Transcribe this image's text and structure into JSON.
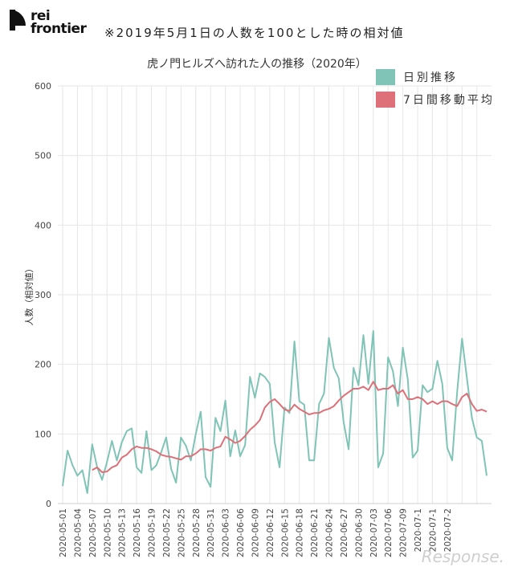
{
  "header": {
    "logo_text": "rei\nfrontier",
    "subtitle": "※2019年5月1日の人数を100とした時の相対値"
  },
  "watermark": "Response.",
  "colors": {
    "daily": "#7fc4b6",
    "ma7": "#dd7078",
    "grid": "#e6e6e6"
  },
  "chart_data": {
    "type": "line",
    "title": "虎ノ門ヒルズへ訪れた人の推移（2020年）",
    "ylabel": "人数（相対値）",
    "xlabel": "",
    "ylim": [
      0,
      600
    ],
    "yticks": [
      0,
      100,
      200,
      300,
      400,
      500,
      600
    ],
    "grid": true,
    "legend_position": "top-right",
    "x_start": "2020-05-01",
    "x_tick_labels": [
      "2020-05-01",
      "2020-05-04",
      "2020-05-07",
      "2020-05-10",
      "2020-05-13",
      "2020-05-16",
      "2020-05-19",
      "2020-05-22",
      "2020-05-25",
      "2020-05-28",
      "2020-05-31",
      "2020-06-03",
      "2020-06-06",
      "2020-06-09",
      "2020-06-12",
      "2020-06-15",
      "2020-06-18",
      "2020-06-21",
      "2020-06-24",
      "2020-06-27",
      "2020-06-30",
      "2020-07-03",
      "2020-07-06",
      "2020-07-09",
      "2020-07-1",
      "2020-07-1",
      "2020-07-2"
    ],
    "series": [
      {
        "name": "日別推移",
        "color": "#7fc4b6",
        "values": [
          25,
          76,
          55,
          40,
          48,
          15,
          85,
          52,
          34,
          60,
          90,
          62,
          88,
          104,
          108,
          52,
          44,
          104,
          48,
          55,
          74,
          95,
          50,
          30,
          95,
          83,
          62,
          100,
          132,
          38,
          24,
          123,
          104,
          148,
          68,
          105,
          68,
          84,
          182,
          152,
          187,
          182,
          172,
          88,
          52,
          138,
          130,
          233,
          147,
          142,
          62,
          62,
          143,
          158,
          238,
          195,
          180,
          116,
          78,
          195,
          170,
          242,
          172,
          248,
          52,
          72,
          210,
          190,
          140,
          224,
          178,
          66,
          76,
          170,
          160,
          165,
          205,
          172,
          80,
          62,
          160,
          237,
          180,
          123,
          95,
          90,
          40
        ]
      },
      {
        "name": "7日間移動平均",
        "color": "#dd7078",
        "values": [
          null,
          null,
          null,
          null,
          null,
          null,
          48,
          52,
          45,
          46,
          52,
          55,
          66,
          70,
          78,
          82,
          80,
          80,
          78,
          75,
          70,
          68,
          67,
          65,
          63,
          68,
          68,
          72,
          78,
          78,
          76,
          80,
          82,
          96,
          92,
          87,
          90,
          97,
          106,
          112,
          120,
          138,
          146,
          150,
          143,
          135,
          133,
          142,
          136,
          132,
          128,
          130,
          130,
          134,
          136,
          140,
          148,
          155,
          160,
          165,
          165,
          168,
          163,
          175,
          163,
          165,
          165,
          170,
          158,
          163,
          150,
          150,
          153,
          150,
          143,
          147,
          143,
          147,
          147,
          143,
          140,
          153,
          158,
          143,
          133,
          135,
          132
        ]
      }
    ]
  }
}
